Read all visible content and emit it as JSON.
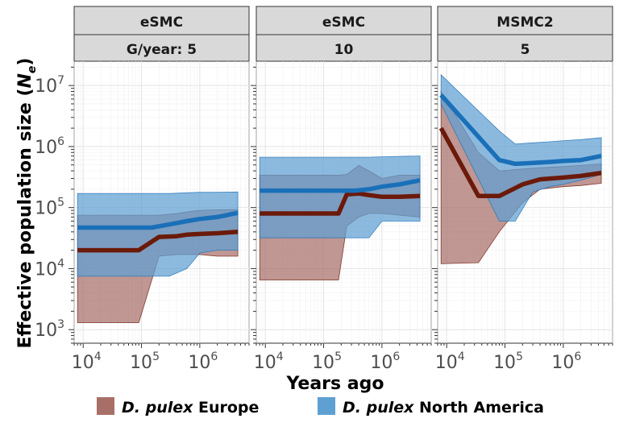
{
  "colors": {
    "europe_fill": "#a86f68",
    "europe_line": "#6b1a0a",
    "na_fill": "#5fa0d2",
    "na_line": "#1a70b8"
  },
  "legend": {
    "items": [
      {
        "species": "D. pulex",
        "region": " Europe",
        "color": "#a86f68"
      },
      {
        "species": "D. pulex",
        "region": " North America",
        "color": "#5fa0d2"
      }
    ]
  },
  "chart_data": {
    "type": "area",
    "xlabel": "Years ago",
    "ylabel_prefix": "Effective population size (",
    "ylabel_symbol": "N",
    "ylabel_sub": "e",
    "ylabel_suffix": ")",
    "x_scale": "log",
    "y_scale": "log",
    "xlim": [
      7000,
      7000000
    ],
    "ylim": [
      600,
      25000000
    ],
    "x_ticks": [
      10000,
      100000,
      1000000
    ],
    "x_tick_labels": [
      {
        "base": "10",
        "exp": "4"
      },
      {
        "base": "10",
        "exp": "5"
      },
      {
        "base": "10",
        "exp": "6"
      }
    ],
    "y_ticks": [
      1000,
      10000,
      100000,
      1000000,
      10000000
    ],
    "y_tick_labels": [
      {
        "base": "10",
        "exp": "3"
      },
      {
        "base": "10",
        "exp": "4"
      },
      {
        "base": "10",
        "exp": "5"
      },
      {
        "base": "10",
        "exp": "6"
      },
      {
        "base": "10",
        "exp": "7"
      }
    ],
    "grid": true,
    "legend_position": "bottom",
    "panels": [
      {
        "method": "eSMC",
        "generations": "G/year: 5",
        "series": [
          {
            "name": "D. pulex Europe",
            "x": [
              8000,
              90000,
              200000,
              400000,
              600000,
              1000000,
              2000000,
              4500000
            ],
            "y": [
              20000,
              20000,
              33000,
              34000,
              36000,
              37000,
              38000,
              40000
            ],
            "lower": [
              1300,
              1300,
              16000,
              17000,
              17000,
              17000,
              16000,
              16000
            ],
            "upper": [
              75000,
              75000,
              75000,
              80000,
              85000,
              90000,
              92000,
              93000
            ]
          },
          {
            "name": "D. pulex North America",
            "x": [
              8000,
              150000,
              300000,
              600000,
              1000000,
              2000000,
              4500000
            ],
            "y": [
              47000,
              47000,
              53000,
              60000,
              65000,
              70000,
              82000
            ],
            "lower": [
              7500,
              7500,
              7500,
              10000,
              18000,
              20000,
              20000
            ],
            "upper": [
              170000,
              170000,
              170000,
              175000,
              178000,
              178000,
              180000
            ]
          }
        ]
      },
      {
        "method": "eSMC",
        "generations": "10",
        "series": [
          {
            "name": "D. pulex Europe",
            "x": [
              8000,
              180000,
              250000,
              400000,
              600000,
              1000000,
              2000000,
              4500000
            ],
            "y": [
              80000,
              80000,
              165000,
              170000,
              160000,
              150000,
              150000,
              155000
            ],
            "lower": [
              6500,
              6500,
              50000,
              70000,
              80000,
              80000,
              75000,
              70000
            ],
            "upper": [
              340000,
              340000,
              350000,
              490000,
              400000,
              300000,
              340000,
              340000
            ]
          },
          {
            "name": "D. pulex North America",
            "x": [
              8000,
              350000,
              600000,
              1000000,
              2000000,
              4500000
            ],
            "y": [
              190000,
              190000,
              200000,
              220000,
              240000,
              280000
            ],
            "lower": [
              32000,
              32000,
              32000,
              60000,
              60000,
              60000
            ],
            "upper": [
              670000,
              670000,
              670000,
              680000,
              690000,
              700000
            ]
          }
        ]
      },
      {
        "method": "MSMC2",
        "generations": "5",
        "series": [
          {
            "name": "D. pulex Europe",
            "x": [
              8000,
              35000,
              80000,
              200000,
              400000,
              1000000,
              2000000,
              4500000
            ],
            "y": [
              2000000,
              155000,
              155000,
              240000,
              290000,
              310000,
              330000,
              370000
            ],
            "lower": [
              12000,
              12500,
              40000,
              120000,
              200000,
              220000,
              230000,
              250000
            ],
            "upper": [
              8000000,
              800000,
              400000,
              430000,
              450000,
              470000,
              490000,
              520000
            ]
          },
          {
            "name": "D. pulex North America",
            "x": [
              8000,
              80000,
              150000,
              300000,
              600000,
              1000000,
              2000000,
              4500000
            ],
            "y": [
              7000000,
              600000,
              520000,
              540000,
              560000,
              580000,
              600000,
              700000
            ],
            "lower": [
              5000000,
              60000,
              60000,
              180000,
              220000,
              240000,
              280000,
              350000
            ],
            "upper": [
              15000000,
              1800000,
              1100000,
              1150000,
              1200000,
              1250000,
              1300000,
              1400000
            ]
          }
        ]
      }
    ]
  }
}
